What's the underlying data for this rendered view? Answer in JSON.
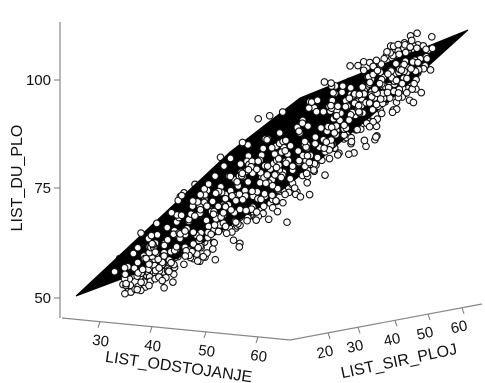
{
  "chart_data": {
    "type": "scatter",
    "projection": "3d",
    "title": "",
    "axes": {
      "z": {
        "label": "LIST_DU_PLO",
        "ticks": [
          50,
          75,
          100
        ],
        "tick_labels": [
          "50",
          "75",
          "100"
        ],
        "range": [
          48,
          112
        ]
      },
      "x": {
        "label": "LIST_ODSTOJANJE",
        "ticks": [
          30,
          40,
          50,
          60
        ],
        "tick_labels": [
          "30",
          "40",
          "50",
          "60"
        ],
        "range": [
          24,
          66
        ]
      },
      "y": {
        "label": "LIST_SIR_PLOJ",
        "ticks": [
          20,
          30,
          40,
          50,
          60
        ],
        "tick_labels": [
          "20",
          "30",
          "40",
          "50",
          "60"
        ],
        "range": [
          16,
          66
        ]
      }
    },
    "grid": false,
    "legend": "none",
    "marker": "open-circle",
    "surface": {
      "fill": "#000000",
      "description_of_extent": "fitted regression plane",
      "z_min": 52,
      "z_max": 111
    },
    "point_count": 1200,
    "colors": {
      "surface": "#000000",
      "points": "#111111",
      "axes": "#888888"
    }
  }
}
